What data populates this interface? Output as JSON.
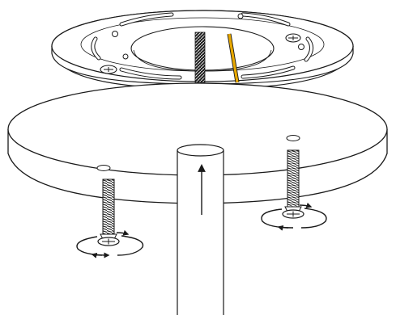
{
  "diagram": {
    "colors": {
      "stroke": "#1a1a1a",
      "fill": "#ffffff",
      "black_wire": "#222222",
      "yellow_wire": "#e8a800",
      "yellow_wire_core": "#ffcf3a"
    },
    "parts": [
      "mounting-bracket",
      "ceiling-plate",
      "mounting-post",
      "black-wire",
      "yellow-wire",
      "left-screw",
      "right-screw",
      "upward-arrow",
      "rotation-arrows"
    ]
  }
}
